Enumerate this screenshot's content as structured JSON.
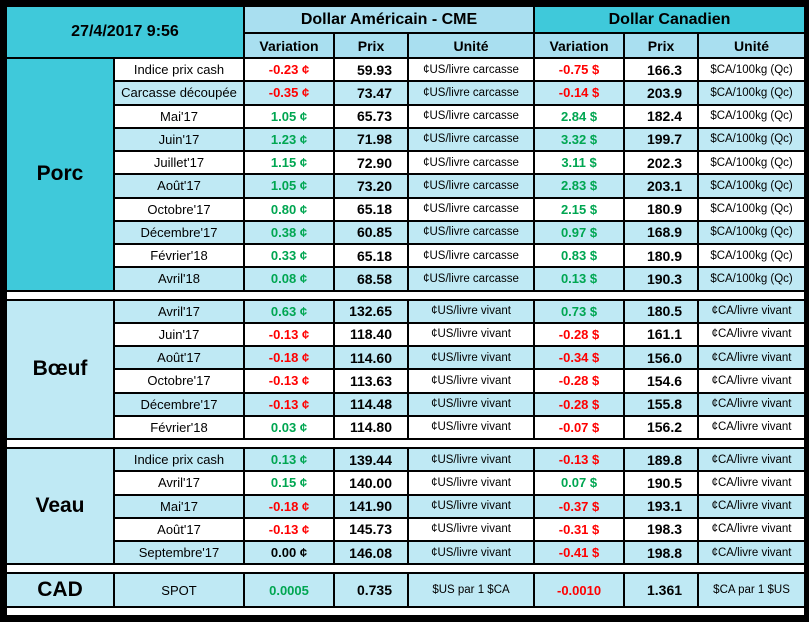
{
  "colors": {
    "teal": "#3fc9da",
    "lightblue": "#a9dff0",
    "stripe": "#bfe9f4",
    "positive": "#00a651",
    "negative": "#ff0000",
    "separator": "#ffffff"
  },
  "chart_data": {
    "type": "table",
    "timestamp": "27/4/2017 9:56",
    "column_groups": [
      {
        "title": "Dollar Américain - CME",
        "columns": [
          "Variation",
          "Prix",
          "Unité"
        ]
      },
      {
        "title": "Dollar Canadien",
        "columns": [
          "Variation",
          "Prix",
          "Unité"
        ]
      }
    ],
    "sections": [
      {
        "name": "Porc",
        "rows": [
          {
            "label": "Indice prix cash",
            "us_var": "-0.23 ¢",
            "us_prix": "59.93",
            "us_unit": "¢US/livre carcasse",
            "ca_var": "-0.75 $",
            "ca_prix": "166.3",
            "ca_unit": "$CA/100kg (Qc)"
          },
          {
            "label": "Carcasse découpée",
            "us_var": "-0.35 ¢",
            "us_prix": "73.47",
            "us_unit": "¢US/livre carcasse",
            "ca_var": "-0.14 $",
            "ca_prix": "203.9",
            "ca_unit": "$CA/100kg (Qc)"
          },
          {
            "label": "Mai'17",
            "us_var": "1.05 ¢",
            "us_prix": "65.73",
            "us_unit": "¢US/livre carcasse",
            "ca_var": "2.84 $",
            "ca_prix": "182.4",
            "ca_unit": "$CA/100kg (Qc)"
          },
          {
            "label": "Juin'17",
            "us_var": "1.23 ¢",
            "us_prix": "71.98",
            "us_unit": "¢US/livre carcasse",
            "ca_var": "3.32 $",
            "ca_prix": "199.7",
            "ca_unit": "$CA/100kg (Qc)"
          },
          {
            "label": "Juillet'17",
            "us_var": "1.15 ¢",
            "us_prix": "72.90",
            "us_unit": "¢US/livre carcasse",
            "ca_var": "3.11 $",
            "ca_prix": "202.3",
            "ca_unit": "$CA/100kg (Qc)"
          },
          {
            "label": "Août'17",
            "us_var": "1.05 ¢",
            "us_prix": "73.20",
            "us_unit": "¢US/livre carcasse",
            "ca_var": "2.83 $",
            "ca_prix": "203.1",
            "ca_unit": "$CA/100kg (Qc)"
          },
          {
            "label": "Octobre'17",
            "us_var": "0.80 ¢",
            "us_prix": "65.18",
            "us_unit": "¢US/livre carcasse",
            "ca_var": "2.15 $",
            "ca_prix": "180.9",
            "ca_unit": "$CA/100kg (Qc)"
          },
          {
            "label": "Décembre'17",
            "us_var": "0.38 ¢",
            "us_prix": "60.85",
            "us_unit": "¢US/livre carcasse",
            "ca_var": "0.97 $",
            "ca_prix": "168.9",
            "ca_unit": "$CA/100kg (Qc)"
          },
          {
            "label": "Février'18",
            "us_var": "0.33 ¢",
            "us_prix": "65.18",
            "us_unit": "¢US/livre carcasse",
            "ca_var": "0.83 $",
            "ca_prix": "180.9",
            "ca_unit": "$CA/100kg (Qc)"
          },
          {
            "label": "Avril'18",
            "us_var": "0.08 ¢",
            "us_prix": "68.58",
            "us_unit": "¢US/livre carcasse",
            "ca_var": "0.13 $",
            "ca_prix": "190.3",
            "ca_unit": "$CA/100kg (Qc)"
          }
        ]
      },
      {
        "name": "Bœuf",
        "rows": [
          {
            "label": "Avril'17",
            "us_var": "0.63 ¢",
            "us_prix": "132.65",
            "us_unit": "¢US/livre vivant",
            "ca_var": "0.73 $",
            "ca_prix": "180.5",
            "ca_unit": "¢CA/livre vivant"
          },
          {
            "label": "Juin'17",
            "us_var": "-0.13 ¢",
            "us_prix": "118.40",
            "us_unit": "¢US/livre vivant",
            "ca_var": "-0.28 $",
            "ca_prix": "161.1",
            "ca_unit": "¢CA/livre vivant"
          },
          {
            "label": "Août'17",
            "us_var": "-0.18 ¢",
            "us_prix": "114.60",
            "us_unit": "¢US/livre vivant",
            "ca_var": "-0.34 $",
            "ca_prix": "156.0",
            "ca_unit": "¢CA/livre vivant"
          },
          {
            "label": "Octobre'17",
            "us_var": "-0.13 ¢",
            "us_prix": "113.63",
            "us_unit": "¢US/livre vivant",
            "ca_var": "-0.28 $",
            "ca_prix": "154.6",
            "ca_unit": "¢CA/livre vivant"
          },
          {
            "label": "Décembre'17",
            "us_var": "-0.13 ¢",
            "us_prix": "114.48",
            "us_unit": "¢US/livre vivant",
            "ca_var": "-0.28 $",
            "ca_prix": "155.8",
            "ca_unit": "¢CA/livre vivant"
          },
          {
            "label": "Février'18",
            "us_var": "0.03 ¢",
            "us_prix": "114.80",
            "us_unit": "¢US/livre vivant",
            "ca_var": "-0.07 $",
            "ca_prix": "156.2",
            "ca_unit": "¢CA/livre vivant"
          }
        ]
      },
      {
        "name": "Veau",
        "rows": [
          {
            "label": "Indice prix cash",
            "us_var": "0.13 ¢",
            "us_prix": "139.44",
            "us_unit": "¢US/livre vivant",
            "ca_var": "-0.13 $",
            "ca_prix": "189.8",
            "ca_unit": "¢CA/livre vivant"
          },
          {
            "label": "Avril'17",
            "us_var": "0.15 ¢",
            "us_prix": "140.00",
            "us_unit": "¢US/livre vivant",
            "ca_var": "0.07 $",
            "ca_prix": "190.5",
            "ca_unit": "¢CA/livre vivant"
          },
          {
            "label": "Mai'17",
            "us_var": "-0.18 ¢",
            "us_prix": "141.90",
            "us_unit": "¢US/livre vivant",
            "ca_var": "-0.37 $",
            "ca_prix": "193.1",
            "ca_unit": "¢CA/livre vivant"
          },
          {
            "label": "Août'17",
            "us_var": "-0.13 ¢",
            "us_prix": "145.73",
            "us_unit": "¢US/livre vivant",
            "ca_var": "-0.31 $",
            "ca_prix": "198.3",
            "ca_unit": "¢CA/livre vivant"
          },
          {
            "label": "Septembre'17",
            "us_var": "0.00 ¢",
            "us_prix": "146.08",
            "us_unit": "¢US/livre vivant",
            "ca_var": "-0.41 $",
            "ca_prix": "198.8",
            "ca_unit": "¢CA/livre vivant"
          }
        ]
      },
      {
        "name": "CAD",
        "rows": [
          {
            "label": "SPOT",
            "us_var": "0.0005",
            "us_prix": "0.735",
            "us_unit": "$US par 1 $CA",
            "ca_var": "-0.0010",
            "ca_prix": "1.361",
            "ca_unit": "$CA par 1 $US"
          }
        ]
      }
    ]
  }
}
